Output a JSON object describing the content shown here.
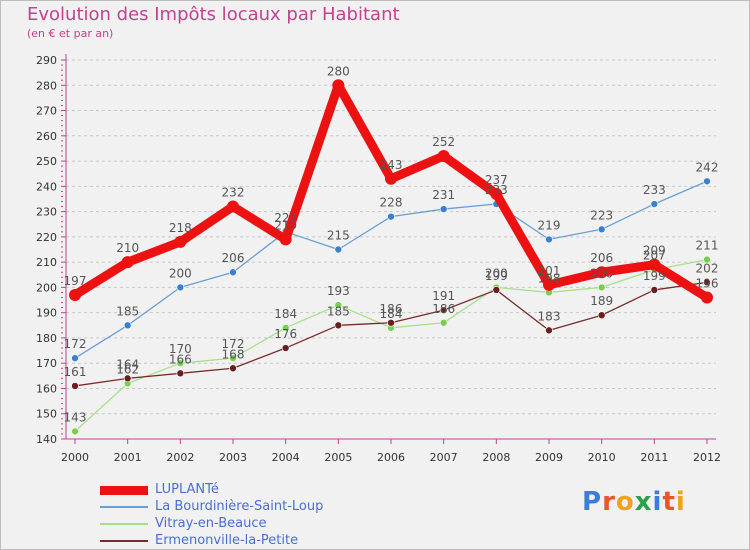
{
  "header": {
    "title": "Evolution des Impôts locaux par Habitant",
    "subtitle": "(en € et par an)"
  },
  "logo": {
    "text": "Proxiti",
    "letters": [
      "P",
      "r",
      "o",
      "x",
      "i",
      "t",
      "i"
    ],
    "colors": [
      "#3b7dd8",
      "#e8562a",
      "#f2a11e",
      "#2aa14a",
      "#3b7dd8",
      "#e8562a",
      "#f2a11e"
    ]
  },
  "chart_data": {
    "type": "line",
    "title": "Evolution des Impôts locaux par Habitant",
    "subtitle": "(en € et par an)",
    "xlabel": "",
    "ylabel": "",
    "x": [
      "2000",
      "2001",
      "2002",
      "2003",
      "2004",
      "2005",
      "2006",
      "2007",
      "2008",
      "2009",
      "2010",
      "2011",
      "2012"
    ],
    "ylim": [
      140,
      290
    ],
    "yticks": [
      140,
      150,
      160,
      170,
      180,
      190,
      200,
      210,
      220,
      230,
      240,
      250,
      260,
      270,
      280,
      290
    ],
    "grid": "dashed horizontal",
    "legend_position": "bottom",
    "series": [
      {
        "name": "LUPLANTé",
        "color": "#ee1111",
        "width": "thick",
        "marker_color": "#ee1111",
        "values": [
          197,
          210,
          218,
          232,
          219,
          280,
          243,
          252,
          237,
          201,
          206,
          209,
          196
        ],
        "labels": [
          "197",
          "210",
          "218",
          "232",
          "219",
          "280",
          "243",
          "252",
          "237",
          "201",
          "206",
          "209",
          "196"
        ]
      },
      {
        "name": "La Bourdinière-Saint-Loup",
        "color": "#6a9fd4",
        "width": "thin",
        "marker_color": "#3a80d0",
        "values": [
          172,
          185,
          200,
          206,
          222,
          215,
          228,
          231,
          233,
          219,
          223,
          233,
          242
        ],
        "labels": [
          "172",
          "185",
          "200",
          "206",
          "222",
          "215",
          "228",
          "231",
          "233",
          "219",
          "223",
          "233",
          "242"
        ]
      },
      {
        "name": "Vitray-en-Beauce",
        "color": "#a8e089",
        "width": "thin",
        "marker_color": "#7acd4e",
        "values": [
          143,
          162,
          170,
          172,
          184,
          193,
          184,
          186,
          200,
          198,
          200,
          207,
          211
        ],
        "labels": [
          "143",
          "162",
          "170",
          "172",
          "184",
          "193",
          "184",
          "186",
          "200",
          "198",
          "200",
          "207",
          "211"
        ]
      },
      {
        "name": "Ermenonville-la-Petite",
        "color": "#7a2a2a",
        "width": "thin",
        "marker_color": "#6b1e1e",
        "values": [
          161,
          164,
          166,
          168,
          176,
          185,
          186,
          191,
          199,
          183,
          189,
          199,
          202
        ],
        "labels": [
          "161",
          "164",
          "166",
          "168",
          "176",
          "185",
          "186",
          "191",
          "199",
          "183",
          "189",
          "199",
          "202"
        ]
      }
    ]
  }
}
